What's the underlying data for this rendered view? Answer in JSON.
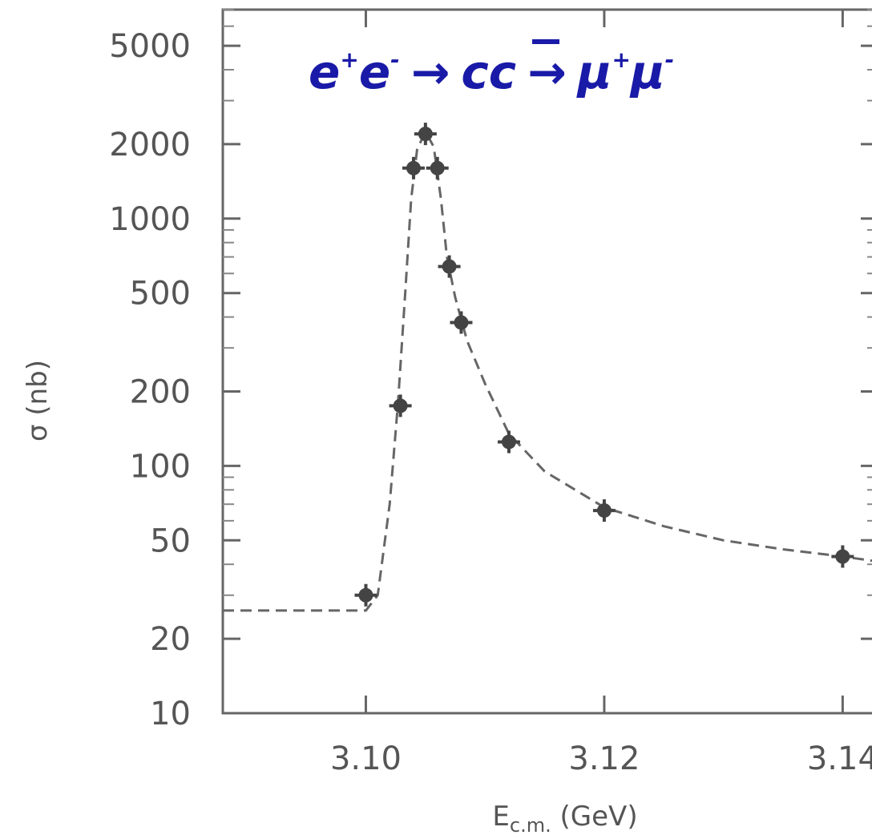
{
  "chart_data": {
    "type": "scatter",
    "title": {
      "e": "e",
      "eplus_sup": "+",
      "eminus_sup": "-",
      "arrow1": "→",
      "c": "c",
      "cbar": "c",
      "arrow2": "→",
      "mu": "μ",
      "muplus_sup": "+",
      "muminus_sup": "-"
    },
    "xlabel": {
      "main": "E",
      "subscript": "c.m.",
      "units": "(GeV)"
    },
    "ylabel": "σ (nb)",
    "xlim": [
      3.088,
      3.143
    ],
    "ylim": [
      10,
      7000
    ],
    "yscale": "log",
    "xticks": [
      {
        "value": 3.1,
        "label": "3.10"
      },
      {
        "value": 3.12,
        "label": "3.12"
      },
      {
        "value": 3.14,
        "label": "3.14"
      }
    ],
    "yticks": [
      {
        "value": 10,
        "label": "10"
      },
      {
        "value": 20,
        "label": "20"
      },
      {
        "value": 50,
        "label": "50"
      },
      {
        "value": 100,
        "label": "100"
      },
      {
        "value": 200,
        "label": "200"
      },
      {
        "value": 500,
        "label": "500"
      },
      {
        "value": 1000,
        "label": "1000"
      },
      {
        "value": 2000,
        "label": "2000"
      },
      {
        "value": 5000,
        "label": "5000"
      }
    ],
    "points": [
      {
        "x": 3.1,
        "y": 30
      },
      {
        "x": 3.1029,
        "y": 175
      },
      {
        "x": 3.104,
        "y": 1600
      },
      {
        "x": 3.105,
        "y": 2200
      },
      {
        "x": 3.106,
        "y": 1600
      },
      {
        "x": 3.107,
        "y": 640
      },
      {
        "x": 3.108,
        "y": 380
      },
      {
        "x": 3.112,
        "y": 125
      },
      {
        "x": 3.12,
        "y": 66
      },
      {
        "x": 3.14,
        "y": 43
      }
    ],
    "fit_curve": [
      [
        3.088,
        26
      ],
      [
        3.095,
        26
      ],
      [
        3.1,
        26
      ],
      [
        3.101,
        30
      ],
      [
        3.102,
        70
      ],
      [
        3.1027,
        180
      ],
      [
        3.1033,
        500
      ],
      [
        3.1038,
        1200
      ],
      [
        3.1043,
        1900
      ],
      [
        3.105,
        2250
      ],
      [
        3.1057,
        1950
      ],
      [
        3.1063,
        1200
      ],
      [
        3.1068,
        700
      ],
      [
        3.1075,
        480
      ],
      [
        3.1085,
        320
      ],
      [
        3.11,
        215
      ],
      [
        3.112,
        135
      ],
      [
        3.115,
        95
      ],
      [
        3.12,
        68
      ],
      [
        3.125,
        57
      ],
      [
        3.13,
        50
      ],
      [
        3.135,
        46
      ],
      [
        3.14,
        43
      ],
      [
        3.143,
        41
      ]
    ],
    "grid": false,
    "colors": {
      "title": "#1a1aa8",
      "data": "#444444",
      "axis": "#666666"
    }
  }
}
